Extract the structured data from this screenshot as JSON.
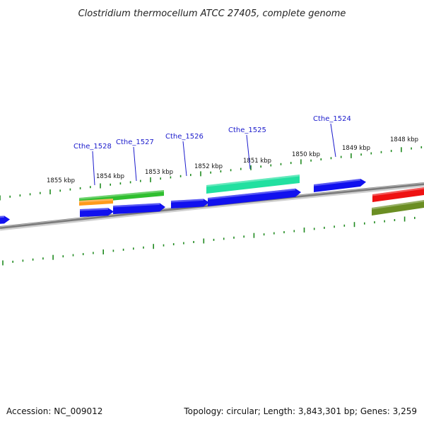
{
  "title": "Clostridium thermocellum ATCC 27405, complete genome",
  "footer": {
    "accession": "Accession: NC_009012",
    "summary": "Topology: circular; Length: 3,843,301 bp; Genes: 3,259"
  },
  "colors": {
    "backbone": "#7a7a7a",
    "tick": "#1f8a1f",
    "gene_label": "#1a1acc",
    "blue_cds": "#1111ee",
    "green_cds": "#2fbf2f",
    "orange_cds": "#ff9a1a",
    "teal_cds": "#22e0a0",
    "red_cds": "#ee1111",
    "olive_cds": "#6b8e23"
  },
  "kbp_labels": [
    "1855 kbp",
    "1854 kbp",
    "1853 kbp",
    "1852 kbp",
    "1851 kbp",
    "1850 kbp",
    "1849 kbp",
    "1848 kbp"
  ],
  "gene_labels": [
    "Cthe_1528",
    "Cthe_1527",
    "Cthe_1526",
    "Cthe_1525",
    "Cthe_1524"
  ]
}
